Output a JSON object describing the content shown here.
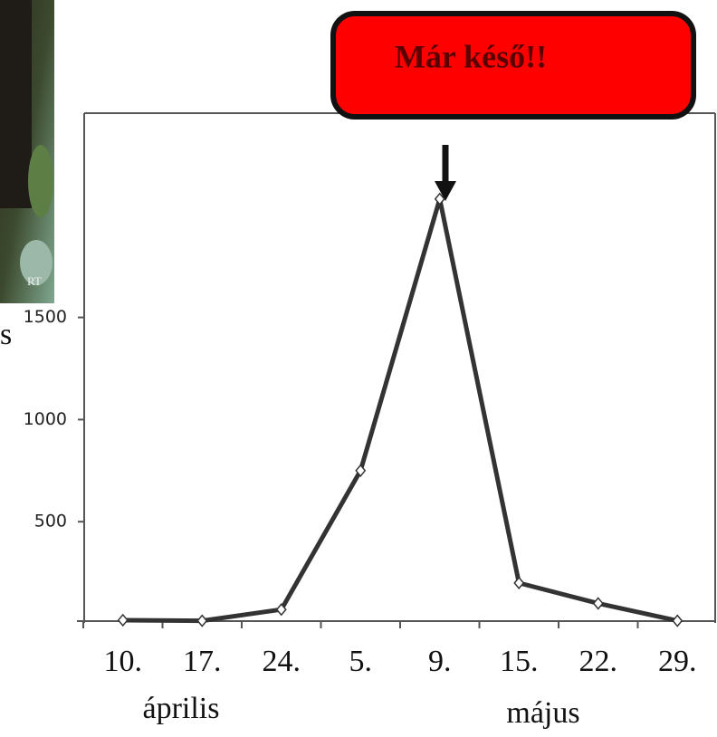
{
  "chart_data": {
    "type": "line",
    "annotation": "Már késő!!",
    "ylabel": "s",
    "photo_text": "RT",
    "categories": [
      "10.",
      "17.",
      "24.",
      "5.",
      "9.",
      "15.",
      "22.",
      "29."
    ],
    "groups": [
      "április",
      "május"
    ],
    "series": [
      {
        "color": "#333333",
        "values": [
          18,
          15,
          70,
          750,
          2080,
          200,
          100,
          15
        ]
      }
    ],
    "ylim": [
      0,
      2500
    ],
    "yticks": [
      500,
      1000,
      1500
    ],
    "grid": false
  }
}
